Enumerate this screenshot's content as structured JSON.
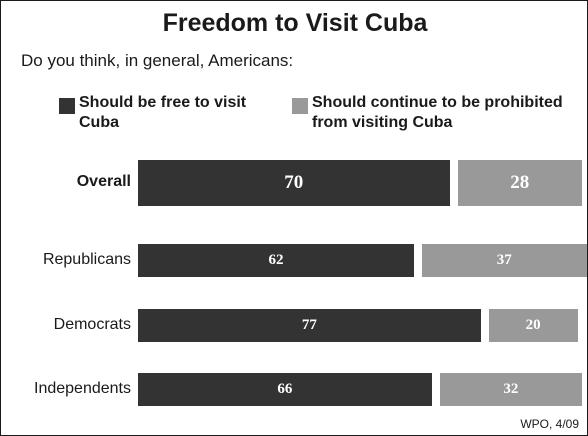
{
  "colors": {
    "free": "#333333",
    "prohibited": "#999999"
  },
  "chart_data": {
    "type": "bar",
    "orientation": "horizontal",
    "stacked": true,
    "title": "Freedom to Visit Cuba",
    "subtitle": "Do you think, in general, Americans:",
    "categories": [
      "Overall",
      "Republicans",
      "Democrats",
      "Independents"
    ],
    "series": [
      {
        "name": "Should be free to visit Cuba",
        "values": [
          70,
          62,
          77,
          66
        ]
      },
      {
        "name": "Should continue to be prohibited from visiting Cuba",
        "values": [
          28,
          37,
          20,
          32
        ]
      }
    ],
    "legend_position": "top",
    "source": "WPO, 4/09"
  }
}
